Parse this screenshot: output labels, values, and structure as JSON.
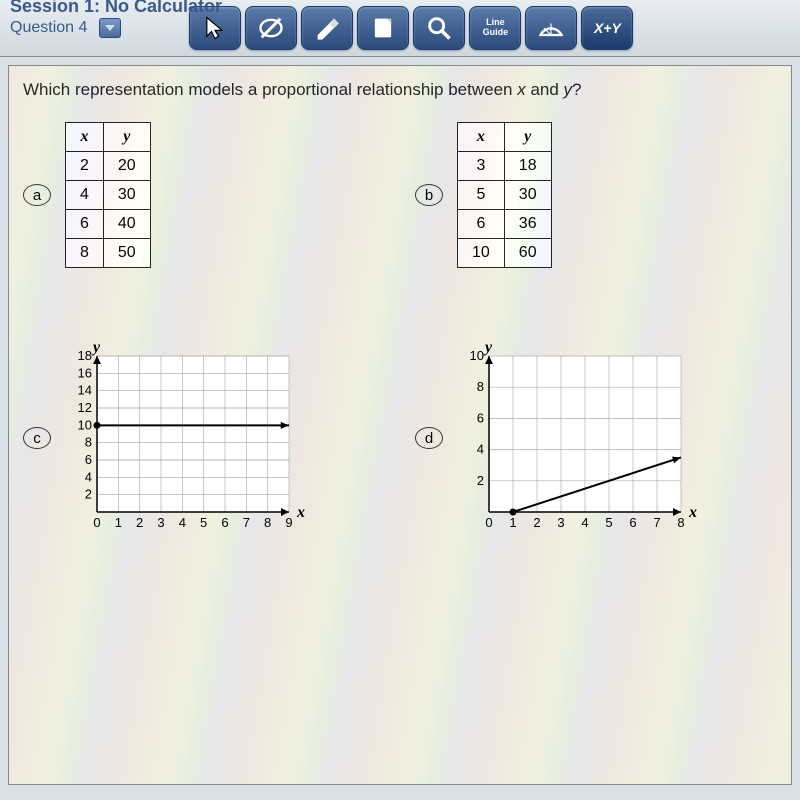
{
  "header": {
    "session": "Session 1: No Calculator",
    "question_number": "Question 4"
  },
  "toolbar": {
    "line_guide": "Line\nGuide",
    "xy": "X+Y"
  },
  "question": "Which representation models a proportional relationship between x and y?",
  "options": {
    "a": {
      "label": "a",
      "type": "table",
      "columns": [
        "x",
        "y"
      ],
      "rows": [
        [
          2,
          20
        ],
        [
          4,
          30
        ],
        [
          6,
          40
        ],
        [
          8,
          50
        ]
      ]
    },
    "b": {
      "label": "b",
      "type": "table",
      "columns": [
        "x",
        "y"
      ],
      "rows": [
        [
          3,
          18
        ],
        [
          5,
          30
        ],
        [
          6,
          36
        ],
        [
          10,
          60
        ]
      ]
    },
    "c": {
      "label": "c",
      "type": "line",
      "x_label": "x",
      "y_label": "y",
      "xlim": [
        0,
        9
      ],
      "ylim": [
        0,
        18
      ],
      "xticks": [
        0,
        1,
        2,
        3,
        4,
        5,
        6,
        7,
        8,
        9
      ],
      "yticks": [
        2,
        4,
        6,
        8,
        10,
        12,
        14,
        16,
        18
      ],
      "line": {
        "from": [
          0,
          10
        ],
        "to": [
          9,
          10
        ]
      },
      "line_color": "#000000",
      "grid_color": "#b0b0b0",
      "bg_color": "#ffffff"
    },
    "d": {
      "label": "d",
      "type": "line",
      "x_label": "x",
      "y_label": "y",
      "xlim": [
        0,
        8
      ],
      "ylim": [
        0,
        10
      ],
      "xticks": [
        0,
        1,
        2,
        3,
        4,
        5,
        6,
        7,
        8
      ],
      "yticks": [
        2,
        4,
        6,
        8,
        10
      ],
      "line": {
        "from": [
          1,
          0
        ],
        "to": [
          8,
          3.5
        ]
      },
      "line_color": "#000000",
      "grid_color": "#b0b0b0",
      "bg_color": "#ffffff"
    }
  },
  "colors": {
    "header_text": "#3a5a8a",
    "tool_bg_top": "#5a7aaa",
    "tool_bg_bottom": "#2a4a7a",
    "content_bg": "#f0f0e8",
    "border": "#222222"
  }
}
